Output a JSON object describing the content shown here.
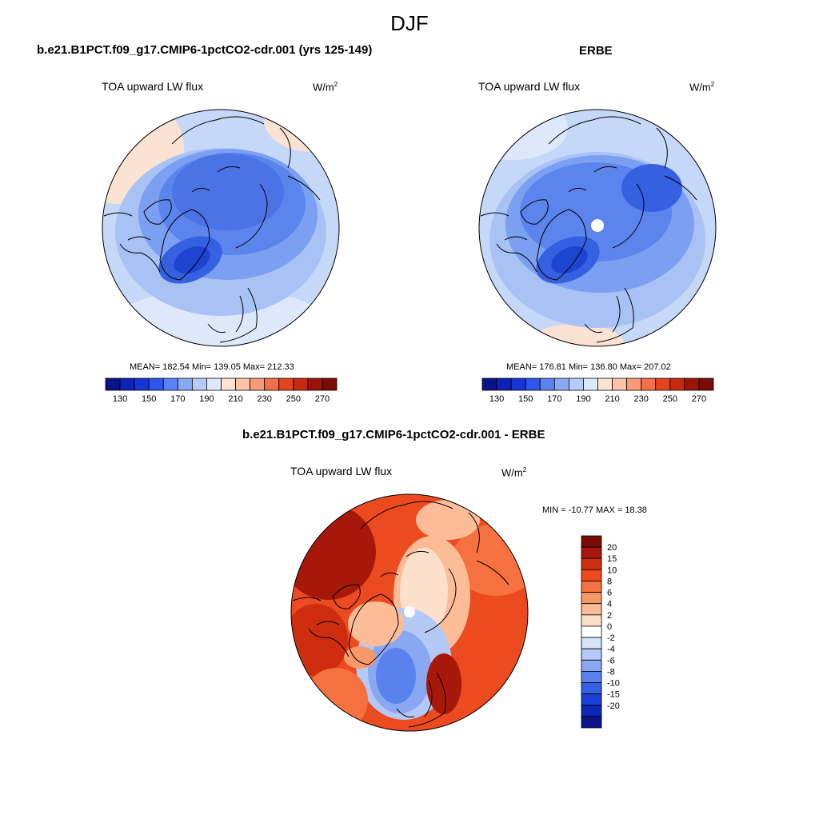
{
  "figure": {
    "title": "DJF",
    "variable": "TOA upward LW flux",
    "units_base": "W/m",
    "units_exp": "2"
  },
  "panels": [
    {
      "title": "b.e21.B1PCT.f09_g17.CMIP6-1pctCO2-cdr.001 (yrs 125-149)",
      "stats": "MEAN= 182.54  Min= 139.05  Max= 212.33",
      "pole_mask": false
    },
    {
      "title": "ERBE",
      "stats": "MEAN= 176.81  Min= 136.80  Max= 207.02",
      "pole_mask": true
    },
    {
      "title": "b.e21.B1PCT.f09_g17.CMIP6-1pctCO2-cdr.001 - ERBE",
      "stats": "MIN = -10.77 MAX =  18.38",
      "pole_mask": true
    }
  ],
  "abs_colorbar": {
    "colors": [
      "#0a1288",
      "#0b22b4",
      "#1535d8",
      "#2e55ec",
      "#5a82f2",
      "#8aa9f4",
      "#b6cbf6",
      "#dce8fb",
      "#fde4d3",
      "#fbc4a8",
      "#f99a76",
      "#f26f4a",
      "#e5441f",
      "#c52a10",
      "#9c1408",
      "#7a0a05"
    ],
    "labels": [
      "130",
      "150",
      "170",
      "190",
      "210",
      "230",
      "250",
      "270"
    ]
  },
  "diff_colorbar": {
    "colors": [
      "#7a0a05",
      "#a8180a",
      "#cf2d10",
      "#ec4a1f",
      "#f5713f",
      "#f99868",
      "#fbbc97",
      "#fde0cc",
      "#ffffff",
      "#d7e4fb",
      "#b4c9f6",
      "#8aa8f2",
      "#5a82ec",
      "#3460e6",
      "#1a40d6",
      "#0d26b3",
      "#0a128c"
    ],
    "labels": [
      "20",
      "15",
      "10",
      "8",
      "6",
      "4",
      "2",
      "0",
      "-2",
      "-4",
      "-6",
      "-8",
      "-10",
      "-15",
      "-20"
    ]
  }
}
